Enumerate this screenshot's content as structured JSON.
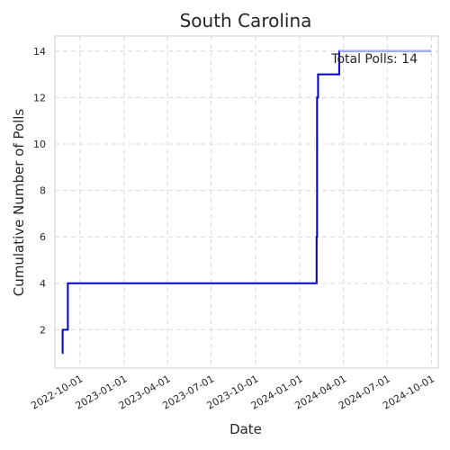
{
  "chart_data": {
    "type": "line",
    "title": "South Carolina",
    "xlabel": "Date",
    "ylabel": "Cumulative Number of Polls",
    "x_ticks": [
      "2022-10-01",
      "2023-01-01",
      "2023-04-01",
      "2023-07-01",
      "2023-10-01",
      "2024-01-01",
      "2024-04-01",
      "2024-07-01",
      "2024-10-01"
    ],
    "y_ticks": [
      2,
      4,
      6,
      8,
      10,
      12,
      14
    ],
    "xlim": [
      "2022-08-10",
      "2024-10-15"
    ],
    "ylim": [
      0.35,
      14.65
    ],
    "grid": true,
    "line_style": "step-post",
    "annotation": "Total Polls: 14",
    "colors": {
      "line": "#0000cc",
      "faded_line": "#a8b4f0",
      "grid": "#d9d9d9",
      "frame": "#cccccc",
      "text": "#262626"
    },
    "series": [
      {
        "x": [
          "2022-08-25",
          "2022-08-26",
          "2022-09-06",
          "2024-02-05",
          "2024-02-06",
          "2024-02-08",
          "2024-03-23",
          "2024-09-30"
        ],
        "y": [
          1,
          2,
          4,
          6,
          12,
          13,
          14,
          14
        ]
      }
    ]
  }
}
